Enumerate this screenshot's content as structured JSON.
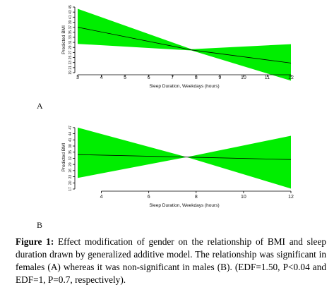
{
  "chart_data": [
    {
      "type": "line",
      "panel_label": "A",
      "xlabel": "Sleep Duration, Weekdays (hours)",
      "ylabel": "Predicted BMI",
      "xlim": [
        3,
        12
      ],
      "ylim": [
        19,
        45
      ],
      "xticks": [
        3,
        4,
        5,
        6,
        7,
        8,
        9,
        10,
        11,
        12
      ],
      "yticks": [
        19,
        21,
        23,
        25,
        27,
        29,
        31,
        33,
        35,
        37,
        39,
        41,
        43,
        45
      ],
      "series": [
        {
          "x": [
            3,
            7.8,
            12
          ],
          "fit": [
            37.0,
            28.0,
            22.8
          ],
          "upper": [
            44.3,
            28.3,
            30.3
          ],
          "lower": [
            30.4,
            27.8,
            15.8
          ]
        }
      ]
    },
    {
      "type": "line",
      "panel_label": "B",
      "xlabel": "Sleep Duration, Weekdays (hours)",
      "ylabel": "Predicted BMI",
      "xlim": [
        3,
        12
      ],
      "ylim": [
        17,
        48
      ],
      "xticks": [
        4,
        6,
        8,
        10,
        12
      ],
      "yticks": [
        17,
        20,
        23,
        26,
        29,
        32,
        35,
        38,
        41,
        44,
        47
      ],
      "series": [
        {
          "x": [
            3,
            7.6,
            12
          ],
          "fit": [
            33.8,
            32.6,
            31.4
          ],
          "upper": [
            47.0,
            32.6,
            43.0
          ],
          "lower": [
            22.4,
            32.6,
            17.2
          ]
        }
      ]
    }
  ],
  "caption": {
    "label": "Figure 1:",
    "text": " Effect modification of gender on the relationship of BMI and sleep duration drawn by generalized additive model. The relationship was significant in females (A) whereas it was non-significant in males (B). (EDF=1.50, P<0.04 and EDF=1, P=0.7, respectively)."
  }
}
